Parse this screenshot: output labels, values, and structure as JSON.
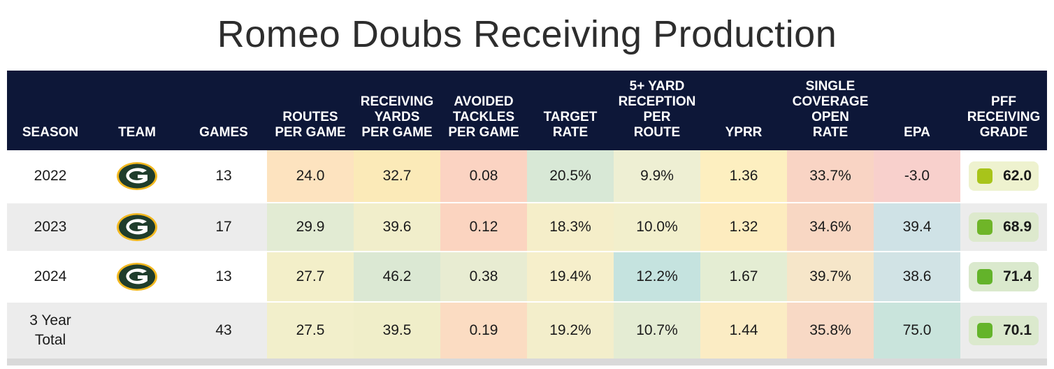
{
  "title": "Romeo Doubs Receiving Production",
  "headers": [
    "SEASON",
    "TEAM",
    "GAMES",
    "ROUTES\nPER GAME",
    "RECEIVING\nYARDS\nPER GAME",
    "AVOIDED\nTACKLES\nPER GAME",
    "TARGET\nRATE",
    "5+ YARD\nRECEPTION\nPER\nROUTE",
    "YPRR",
    "SINGLE\nCOVERAGE\nOPEN\nRATE",
    "EPA",
    "PFF\nRECEIVING\nGRADE"
  ],
  "team_logo": "green-bay-packers-g-logo-icon",
  "colors": {
    "header_bg": "#0d1738",
    "stripe": "#ececec",
    "logo_green": "#1f3d2c",
    "logo_gold": "#f2b81f"
  },
  "rows": [
    {
      "season": "2022",
      "team_logo": true,
      "games": "13",
      "stats": [
        "24.0",
        "32.7",
        "0.08",
        "20.5%",
        "9.9%",
        "1.36",
        "33.7%",
        "-3.0"
      ],
      "stat_colors": [
        "#fde3bf",
        "#fbeab8",
        "#fbd3c2",
        "#d8e8d6",
        "#eeefd3",
        "#fdefc0",
        "#f9d4c4",
        "#f8d0cc"
      ],
      "grade": "62.0",
      "grade_bg": "#eef2cf",
      "grade_dot": "#a8c41a"
    },
    {
      "season": "2023",
      "team_logo": true,
      "games": "17",
      "stats": [
        "29.9",
        "39.6",
        "0.12",
        "18.3%",
        "10.0%",
        "1.32",
        "34.6%",
        "39.4"
      ],
      "stat_colors": [
        "#e2ebd3",
        "#f1eecb",
        "#fbd4c0",
        "#f5eec9",
        "#f2efcc",
        "#fdecbf",
        "#f8d7c3",
        "#cfe2e6"
      ],
      "grade": "68.9",
      "grade_bg": "#dde9cd",
      "grade_dot": "#6fb528"
    },
    {
      "season": "2024",
      "team_logo": true,
      "games": "13",
      "stats": [
        "27.7",
        "46.2",
        "0.38",
        "19.4%",
        "12.2%",
        "1.67",
        "39.7%",
        "38.6"
      ],
      "stat_colors": [
        "#f3efc9",
        "#dbe8d3",
        "#e8ecd2",
        "#f6efcb",
        "#c5e3df",
        "#e4edd3",
        "#f6e6c9",
        "#d1e3e5"
      ],
      "grade": "71.4",
      "grade_bg": "#dae9cd",
      "grade_dot": "#63b32a"
    },
    {
      "season": "3 Year\nTotal",
      "team_logo": false,
      "games": "43",
      "stats": [
        "27.5",
        "39.5",
        "0.19",
        "19.2%",
        "10.7%",
        "1.44",
        "35.8%",
        "75.0"
      ],
      "stat_colors": [
        "#f2efcb",
        "#f0eec9",
        "#fbdcc2",
        "#f3eecb",
        "#e4ecd3",
        "#fbecc4",
        "#f8d9c5",
        "#c9e4dc"
      ],
      "grade": "70.1",
      "grade_bg": "#dbe9cd",
      "grade_dot": "#64b42a"
    }
  ],
  "chart_data": {
    "type": "table",
    "title": "Romeo Doubs Receiving Production",
    "columns": [
      "SEASON",
      "TEAM",
      "GAMES",
      "ROUTES PER GAME",
      "RECEIVING YARDS PER GAME",
      "AVOIDED TACKLES PER GAME",
      "TARGET RATE",
      "5+ YARD RECEPTION PER ROUTE",
      "YPRR",
      "SINGLE COVERAGE OPEN RATE",
      "EPA",
      "PFF RECEIVING GRADE"
    ],
    "rows": [
      [
        "2022",
        "GB",
        13,
        24.0,
        32.7,
        0.08,
        "20.5%",
        "9.9%",
        1.36,
        "33.7%",
        -3.0,
        62.0
      ],
      [
        "2023",
        "GB",
        17,
        29.9,
        39.6,
        0.12,
        "18.3%",
        "10.0%",
        1.32,
        "34.6%",
        39.4,
        68.9
      ],
      [
        "2024",
        "GB",
        13,
        27.7,
        46.2,
        0.38,
        "19.4%",
        "12.2%",
        1.67,
        "39.7%",
        38.6,
        71.4
      ],
      [
        "3 Year Total",
        "",
        43,
        27.5,
        39.5,
        0.19,
        "19.2%",
        "10.7%",
        1.44,
        "35.8%",
        75.0,
        70.1
      ]
    ]
  }
}
